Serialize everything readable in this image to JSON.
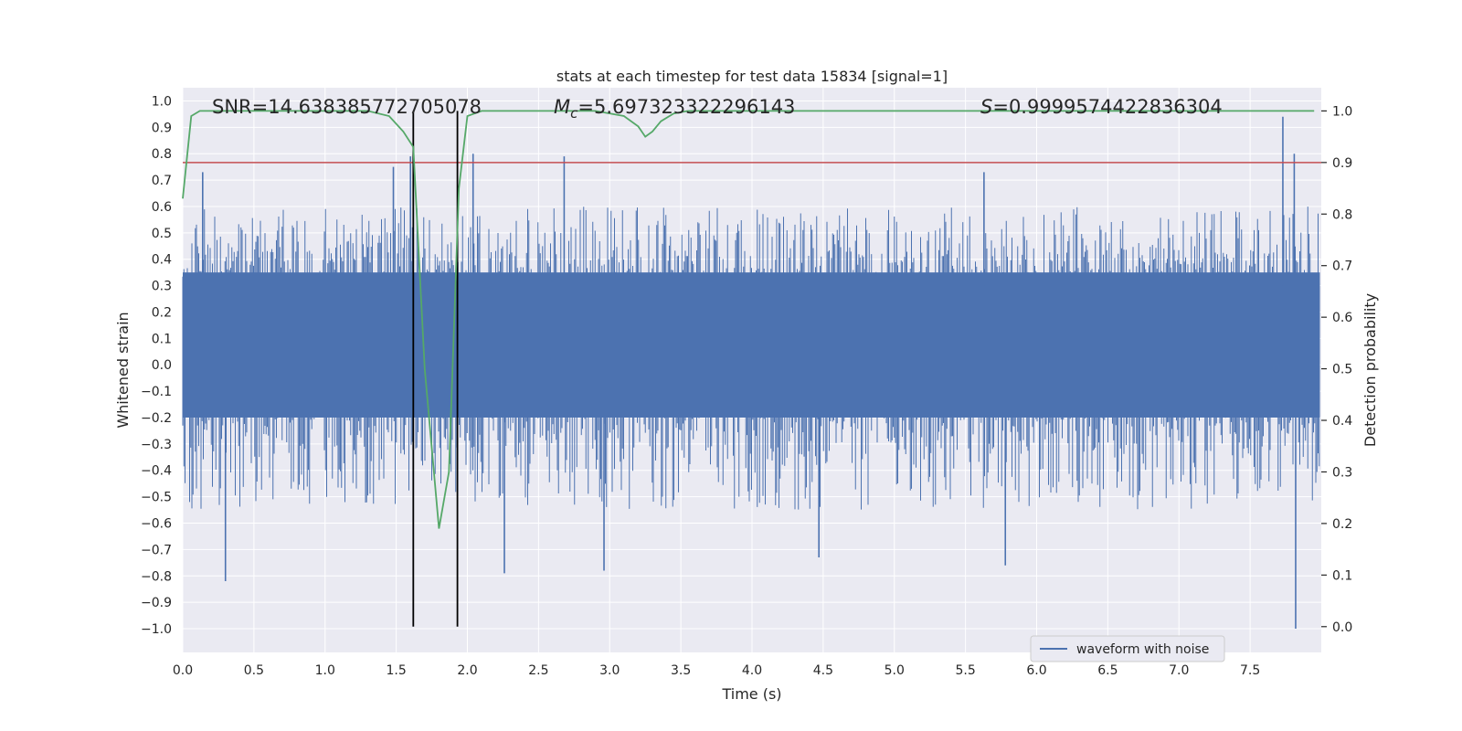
{
  "chart_data": {
    "type": "line",
    "title": "stats at each timestep for test data 15834 [signal=1]",
    "xlabel": "Time (s)",
    "ylabel": "Whitened strain",
    "ylabel_right": "Detection probability",
    "xlim": [
      0.0,
      8.0
    ],
    "ylim": [
      -1.09,
      1.05
    ],
    "ylim_right": [
      -0.05,
      1.045
    ],
    "x_ticks": [
      "0.0",
      "0.5",
      "1.0",
      "1.5",
      "2.0",
      "2.5",
      "3.0",
      "3.5",
      "4.0",
      "4.5",
      "5.0",
      "5.5",
      "6.0",
      "6.5",
      "7.0",
      "7.5"
    ],
    "y_ticks": [
      "1.0",
      "0.9",
      "0.8",
      "0.7",
      "0.6",
      "0.5",
      "0.4",
      "0.3",
      "0.2",
      "0.1",
      "0.0",
      "−0.1",
      "−0.2",
      "−0.3",
      "−0.4",
      "−0.5",
      "−0.6",
      "−0.7",
      "−0.8",
      "−0.9",
      "−1.0"
    ],
    "y_ticks_right": [
      "1.0",
      "0.9",
      "0.8",
      "0.7",
      "0.6",
      "0.5",
      "0.4",
      "0.3",
      "0.2",
      "0.1",
      "0.0"
    ],
    "annotations": {
      "snr_prefix": "SNR=",
      "snr_value": "14.638385772705078",
      "mc_symbol": "M",
      "mc_subscript": "c",
      "mc_value": "=5.697323322296143",
      "s_symbol": "S",
      "s_value": "=0.9999574422836304"
    },
    "legend": {
      "label": "waveform with noise",
      "location": "lower-right"
    },
    "series": [
      {
        "name": "waveform with noise",
        "axis": "left",
        "color": "#4c72b0",
        "kind": "noise-band",
        "x_range": [
          0.0,
          7.99
        ],
        "core_band": [
          -0.2,
          0.35
        ],
        "typical_peak_max": 0.6,
        "typical_trough_min": -0.55,
        "notable_spikes": [
          {
            "x": 0.3,
            "y": -0.82
          },
          {
            "x": 0.14,
            "y": 0.73
          },
          {
            "x": 1.48,
            "y": 0.75
          },
          {
            "x": 1.6,
            "y": 0.79
          },
          {
            "x": 2.04,
            "y": 0.8
          },
          {
            "x": 2.68,
            "y": 0.79
          },
          {
            "x": 2.96,
            "y": -0.78
          },
          {
            "x": 2.26,
            "y": -0.79
          },
          {
            "x": 4.47,
            "y": -0.73
          },
          {
            "x": 5.63,
            "y": 0.73
          },
          {
            "x": 5.78,
            "y": -0.76
          },
          {
            "x": 7.73,
            "y": 0.94
          },
          {
            "x": 7.81,
            "y": 0.8
          },
          {
            "x": 7.82,
            "y": -1.0
          }
        ]
      },
      {
        "name": "detection probability",
        "axis": "right",
        "color": "#55a868",
        "x": [
          0.0,
          0.06,
          0.12,
          0.2,
          1.3,
          1.45,
          1.55,
          1.62,
          1.7,
          1.8,
          1.87,
          1.94,
          2.0,
          2.1,
          2.9,
          3.1,
          3.2,
          3.25,
          3.3,
          3.36,
          3.45,
          3.55,
          7.95
        ],
        "y": [
          0.83,
          0.99,
          1.0,
          1.0,
          1.0,
          0.99,
          0.96,
          0.93,
          0.5,
          0.19,
          0.3,
          0.85,
          0.99,
          1.0,
          1.0,
          0.99,
          0.97,
          0.95,
          0.96,
          0.98,
          0.995,
          1.0,
          1.0
        ]
      },
      {
        "name": "threshold",
        "axis": "right",
        "color": "#c44e52",
        "kind": "hline",
        "y": 0.9
      }
    ],
    "vlines": [
      {
        "x": 1.62,
        "color": "#000000",
        "y_range_right": [
          0.0,
          1.0
        ]
      },
      {
        "x": 1.93,
        "color": "#000000",
        "y_range_right": [
          0.0,
          1.0
        ]
      }
    ],
    "grid": true
  }
}
